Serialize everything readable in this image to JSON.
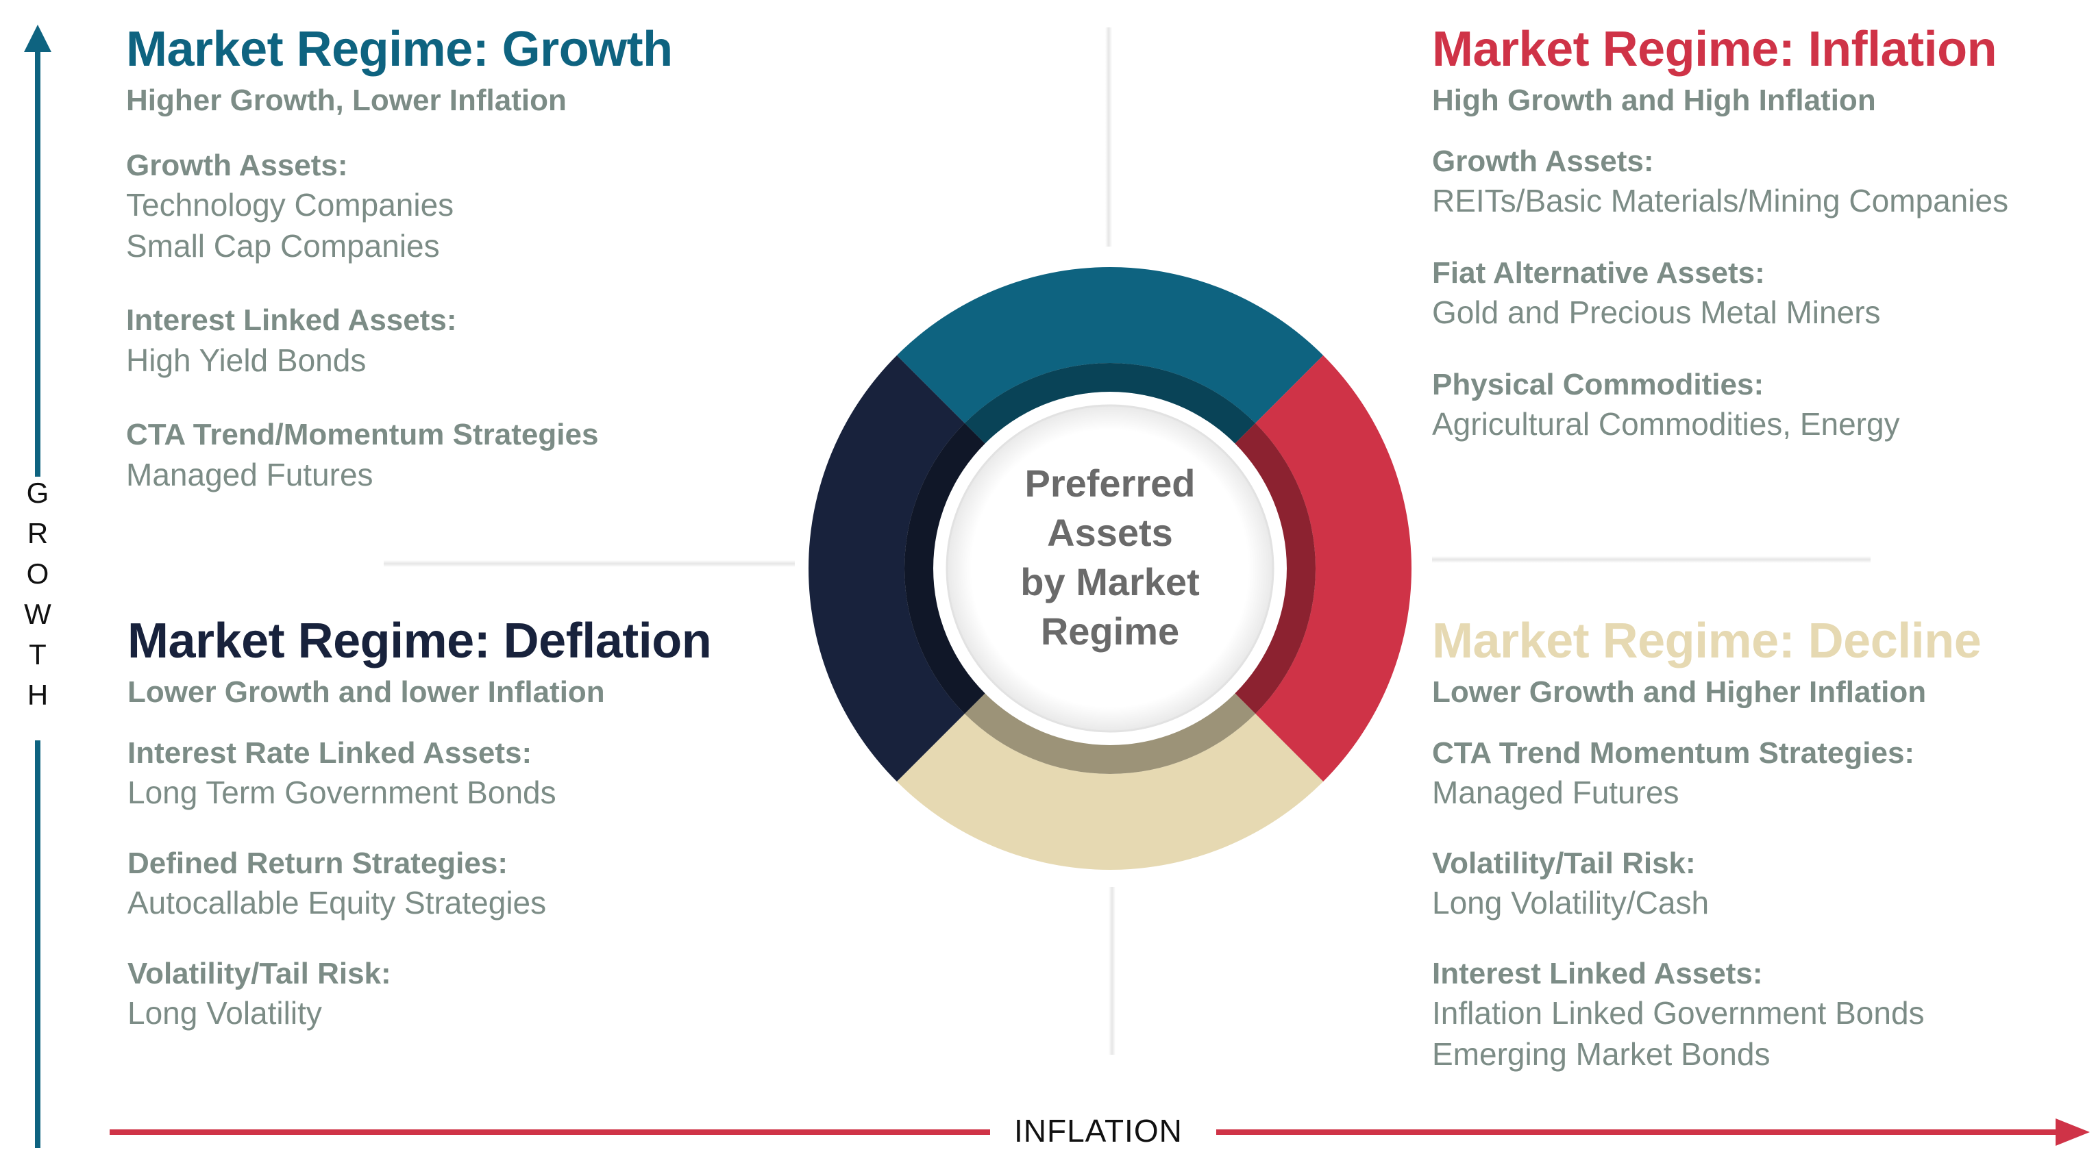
{
  "axes": {
    "growth_letters": [
      "G",
      "R",
      "O",
      "W",
      "T",
      "H"
    ],
    "inflation_label": "INFLATION",
    "growth_color": "#0e6380",
    "inflation_color": "#cf3347"
  },
  "center": {
    "lines": [
      "Preferred",
      "Assets",
      "by Market",
      "Regime"
    ]
  },
  "ring_colors": {
    "growth": "#0e6380",
    "inflation": "#cf3347",
    "decline": "#e6d9b2",
    "deflation": "#18223c"
  },
  "quadrants": {
    "growth": {
      "title": "Market Regime: Growth",
      "color": "#0e6380",
      "subtitle": "Higher Growth, Lower Inflation",
      "groups": [
        {
          "head": "Growth Assets:",
          "items": [
            "Technology Companies",
            "Small Cap Companies"
          ]
        },
        {
          "head": "Interest Linked Assets:",
          "items": [
            "High Yield Bonds"
          ]
        },
        {
          "head": "CTA Trend/Momentum Strategies",
          "items": [
            "Managed Futures"
          ]
        }
      ]
    },
    "inflation": {
      "title": "Market Regime: Inflation",
      "color": "#cf3347",
      "subtitle": "High Growth and High Inflation",
      "groups": [
        {
          "head": "Growth Assets:",
          "items": [
            "REITs/Basic Materials/Mining Companies"
          ]
        },
        {
          "head": "Fiat Alternative Assets:",
          "items": [
            "Gold and Precious Metal Miners"
          ]
        },
        {
          "head": "Physical Commodities:",
          "items": [
            "Agricultural Commodities, Energy"
          ]
        }
      ]
    },
    "deflation": {
      "title": "Market Regime: Deflation",
      "color": "#18223c",
      "subtitle": "Lower Growth and lower Inflation",
      "groups": [
        {
          "head": "Interest Rate Linked Assets:",
          "items": [
            "Long Term Government Bonds"
          ]
        },
        {
          "head": "Defined Return Strategies:",
          "items": [
            "Autocallable Equity Strategies"
          ]
        },
        {
          "head": "Volatility/Tail Risk:",
          "items": [
            "Long Volatility"
          ]
        }
      ]
    },
    "decline": {
      "title": "Market Regime: Decline",
      "color": "#e6d9b2",
      "subtitle": "Lower Growth and Higher Inflation",
      "groups": [
        {
          "head": "CTA Trend Momentum Strategies:",
          "items": [
            "Managed Futures"
          ]
        },
        {
          "head": "Volatility/Tail Risk:",
          "items": [
            "Long Volatility/Cash"
          ]
        },
        {
          "head": "Interest Linked Assets:",
          "items": [
            "Inflation Linked Government Bonds",
            "Emerging Market Bonds"
          ]
        }
      ]
    }
  }
}
